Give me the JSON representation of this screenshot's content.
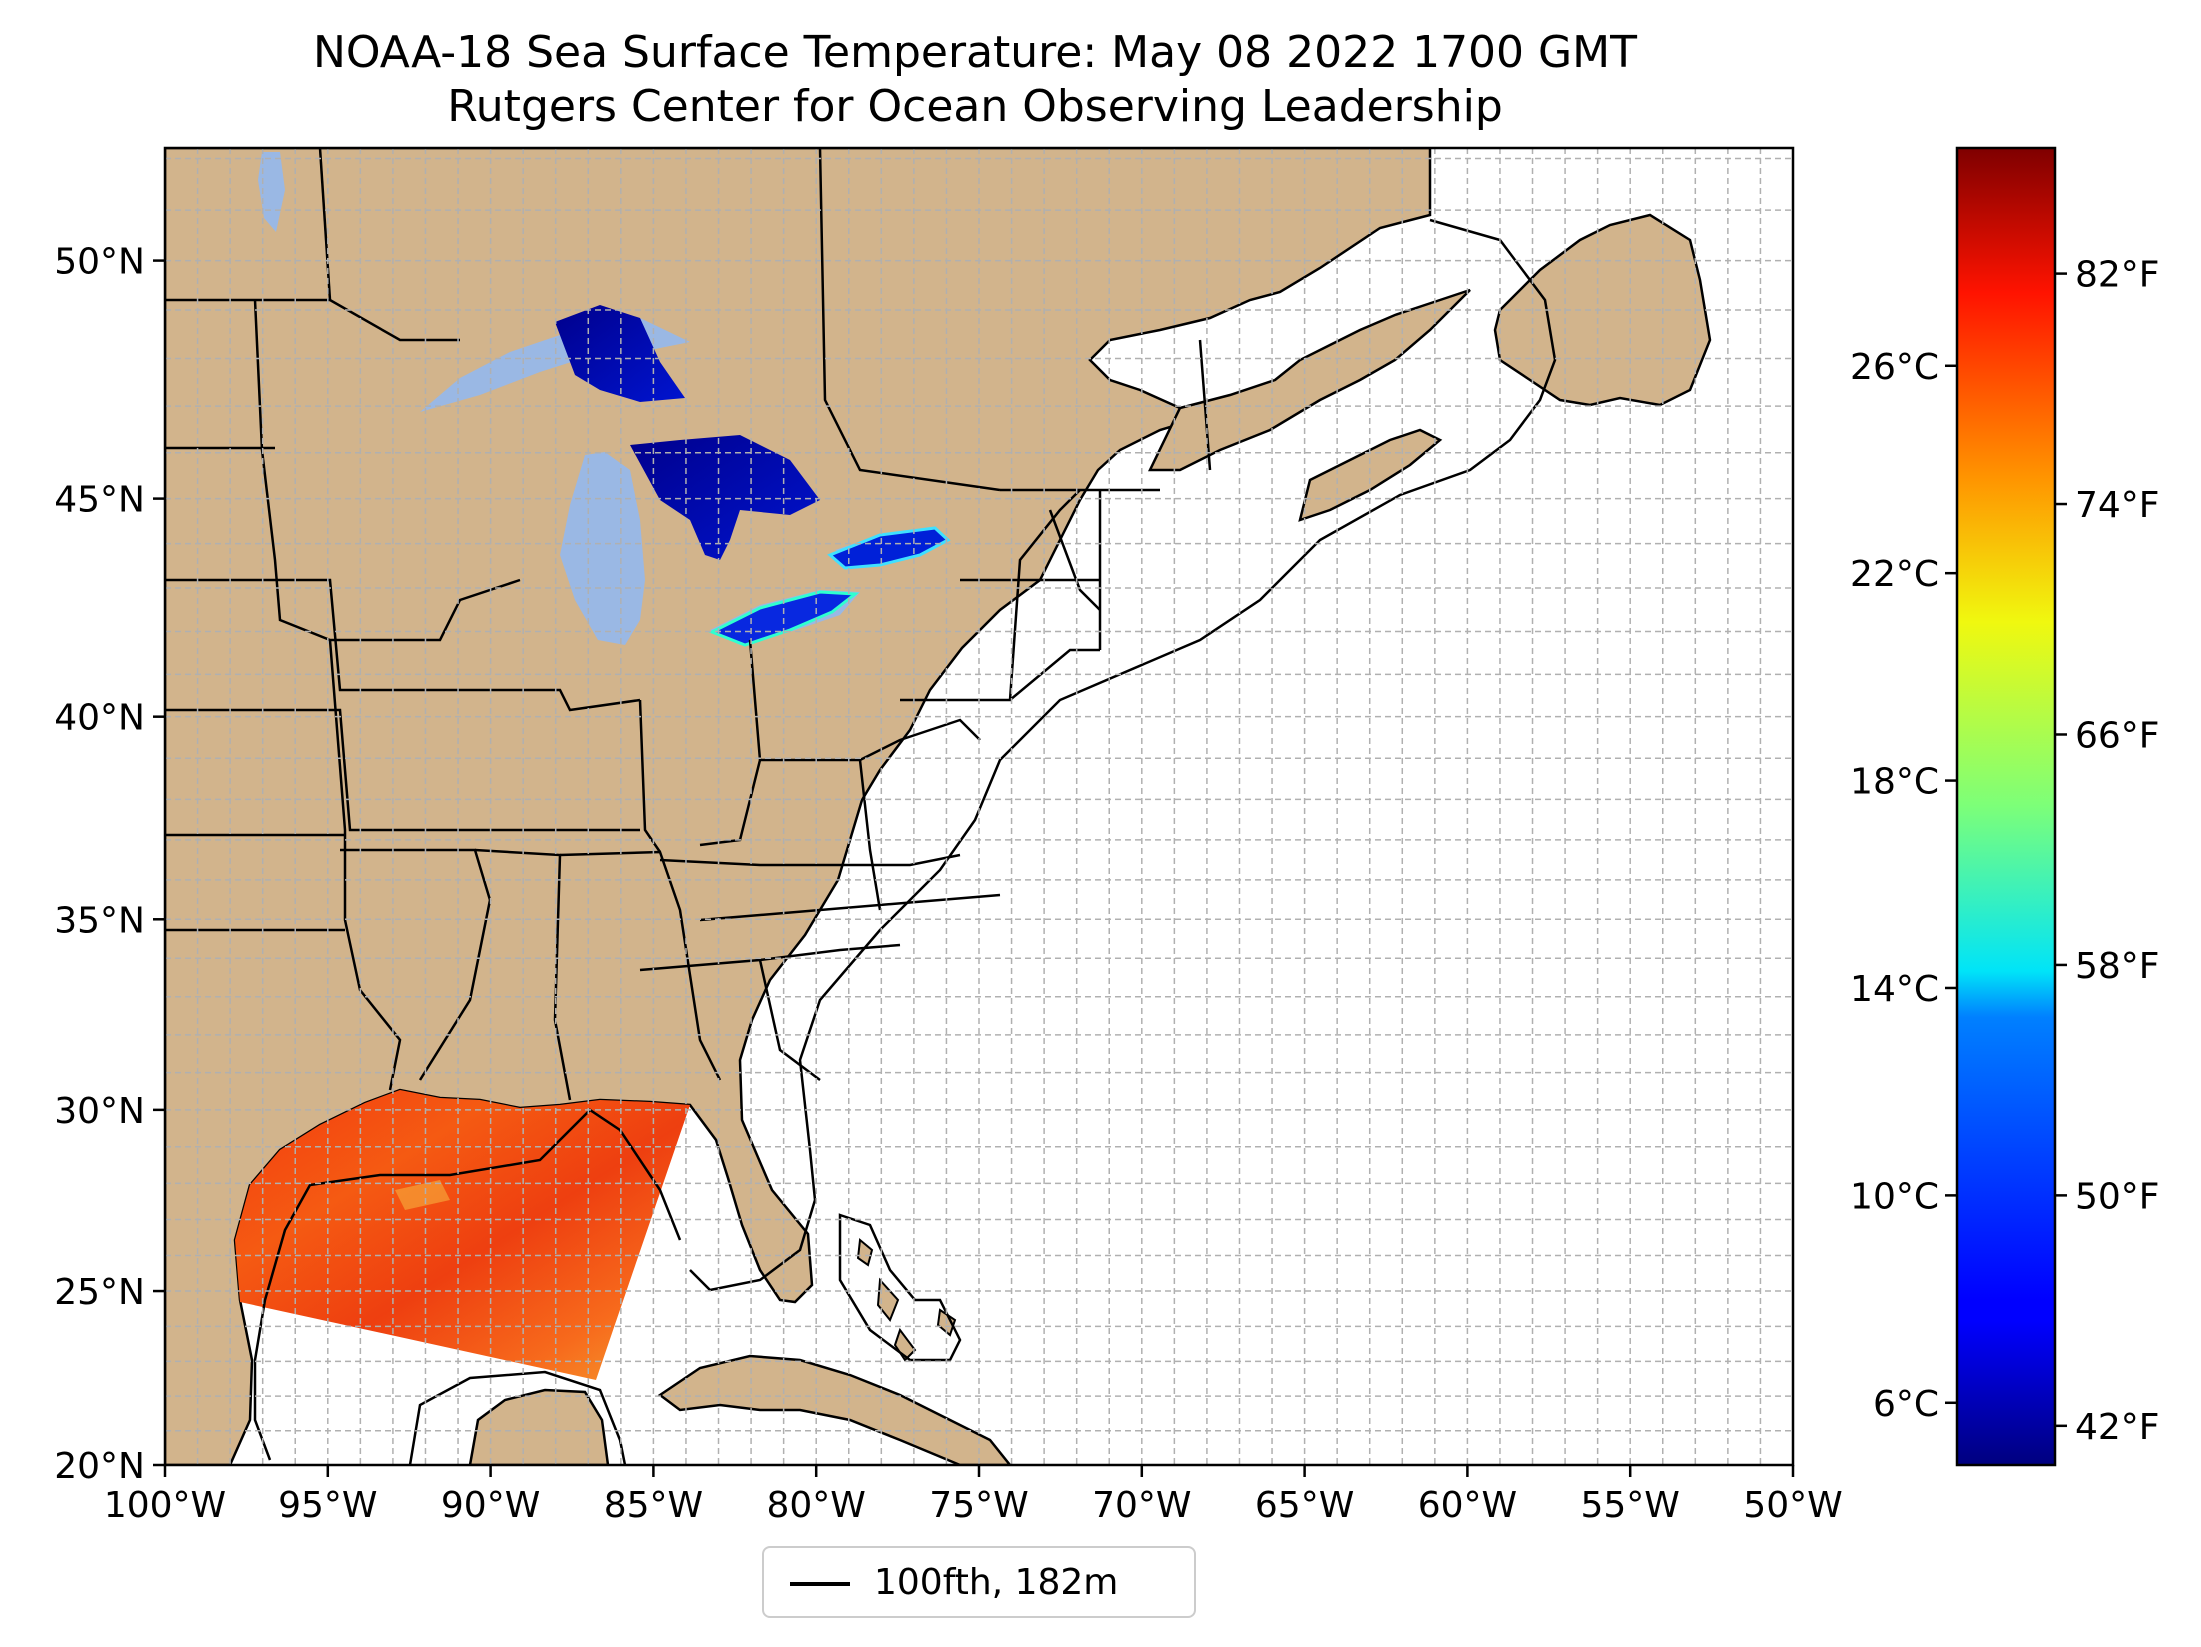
{
  "title": "NOAA-18 Sea Surface Temperature: May 08 2022 1700 GMT",
  "subtitle": "Rutgers Center for Ocean Observing Leadership",
  "map": {
    "lon_range": [
      -100,
      -50
    ],
    "lat_range": [
      20,
      52.2
    ],
    "lon_ticks": [
      {
        "value": -100,
        "label": "100°W"
      },
      {
        "value": -95,
        "label": "95°W"
      },
      {
        "value": -90,
        "label": "90°W"
      },
      {
        "value": -85,
        "label": "85°W"
      },
      {
        "value": -80,
        "label": "80°W"
      },
      {
        "value": -75,
        "label": "75°W"
      },
      {
        "value": -70,
        "label": "70°W"
      },
      {
        "value": -65,
        "label": "65°W"
      },
      {
        "value": -60,
        "label": "60°W"
      },
      {
        "value": -55,
        "label": "55°W"
      },
      {
        "value": -50,
        "label": "50°W"
      }
    ],
    "lat_ticks": [
      {
        "value": 20,
        "label": "20°N"
      },
      {
        "value": 25,
        "label": "25°N"
      },
      {
        "value": 30,
        "label": "30°N"
      },
      {
        "value": 35,
        "label": "35°N"
      },
      {
        "value": 40,
        "label": "40°N"
      },
      {
        "value": 45,
        "label": "45°N"
      },
      {
        "value": 50,
        "label": "50°N"
      }
    ],
    "grid": "dashed",
    "land_color": "#d2b48c",
    "lake_color": "#9ab8e4",
    "ocean_color": "#ffffff",
    "contour_label": "100fth, 182m"
  },
  "colorbar": {
    "colormap": "jet",
    "celsius_ticks": [
      {
        "value": 6,
        "label": "6°C"
      },
      {
        "value": 10,
        "label": "10°C"
      },
      {
        "value": 14,
        "label": "14°C"
      },
      {
        "value": 18,
        "label": "18°C"
      },
      {
        "value": 22,
        "label": "22°C"
      },
      {
        "value": 26,
        "label": "26°C"
      }
    ],
    "fahrenheit_ticks": [
      {
        "value": 42,
        "label": "42°F"
      },
      {
        "value": 50,
        "label": "50°F"
      },
      {
        "value": 58,
        "label": "58°F"
      },
      {
        "value": 66,
        "label": "66°F"
      },
      {
        "value": 74,
        "label": "74°F"
      },
      {
        "value": 82,
        "label": "82°F"
      }
    ]
  }
}
